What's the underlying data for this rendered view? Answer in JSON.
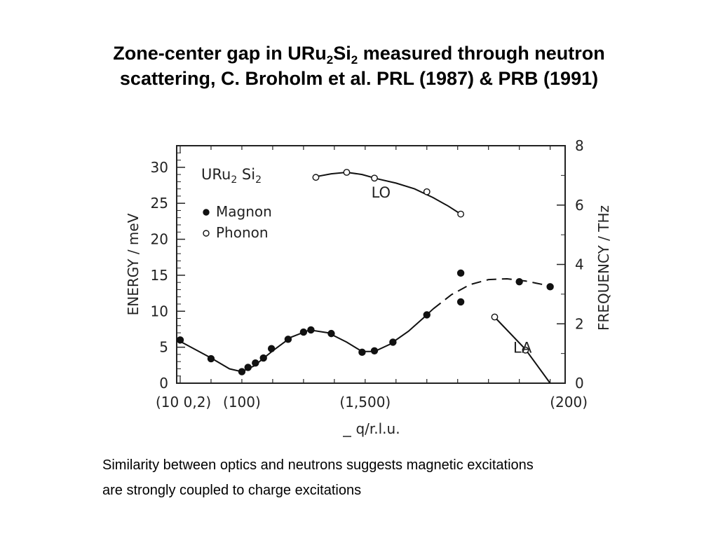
{
  "slide": {
    "title_line1_pre": "Zone-center gap in URu",
    "title_sub1": "2",
    "title_mid": "Si",
    "title_sub2": "2",
    "title_line1_post": " measured through neutron",
    "title_line2": "scattering, C. Broholm et al. PRL (1987) & PRB (1991)",
    "caption_line1": "Similarity between optics and neutrons suggests magnetic excitations",
    "caption_line2": "are strongly coupled to charge excitations"
  },
  "chart_data": {
    "type": "scatter",
    "ylabel": "ENERGY / meV",
    "y2label": "FREQUENCY / THz",
    "xlabel": "q/r.l.u.",
    "ylim": [
      0,
      33
    ],
    "y2lim": [
      0,
      8
    ],
    "xlim": [
      -0.5,
      5.8
    ],
    "yticks": [
      0,
      5,
      10,
      15,
      20,
      25,
      30
    ],
    "y2ticks": [
      0,
      2,
      4,
      6,
      8
    ],
    "x_tick_labels": [
      {
        "x": -0.5,
        "label": "(10 0,2)"
      },
      {
        "x": 0.5,
        "label": "(100)"
      },
      {
        "x": 2.5,
        "label": "(1,500)"
      },
      {
        "x": 5.5,
        "label": "(200)"
      }
    ],
    "inset_label": {
      "main": "URu",
      "sub1": "2",
      "mid": " Si",
      "sub2": "2"
    },
    "legend": [
      {
        "name": "Magnon",
        "marker": "filled"
      },
      {
        "name": "Phonon",
        "marker": "open"
      }
    ],
    "legend_position": "top-left",
    "curve_labels": [
      {
        "text": "LO",
        "x": 2.6,
        "y": 26.2
      },
      {
        "text": "LA",
        "x": 4.9,
        "y": 4.6
      }
    ],
    "series": [
      {
        "name": "Magnon",
        "marker": "filled",
        "points": [
          [
            -0.5,
            6.0
          ],
          [
            0.0,
            3.4
          ],
          [
            0.5,
            1.6
          ],
          [
            0.6,
            2.2
          ],
          [
            0.72,
            2.8
          ],
          [
            0.85,
            3.5
          ],
          [
            0.98,
            4.8
          ],
          [
            1.25,
            6.1
          ],
          [
            1.5,
            7.1
          ],
          [
            1.62,
            7.4
          ],
          [
            1.95,
            6.9
          ],
          [
            2.45,
            4.3
          ],
          [
            2.65,
            4.5
          ],
          [
            2.95,
            5.7
          ],
          [
            3.5,
            9.5
          ],
          [
            4.05,
            11.3
          ],
          [
            4.05,
            15.3
          ],
          [
            5.0,
            14.1
          ],
          [
            5.5,
            13.4
          ]
        ]
      },
      {
        "name": "Phonon LO",
        "marker": "open",
        "points": [
          [
            1.7,
            28.6
          ],
          [
            2.2,
            29.3
          ],
          [
            2.65,
            28.5
          ],
          [
            3.5,
            26.6
          ],
          [
            4.05,
            23.5
          ]
        ]
      },
      {
        "name": "Phonon LA",
        "marker": "open",
        "points": [
          [
            4.6,
            9.2
          ],
          [
            5.1,
            4.6
          ]
        ]
      }
    ],
    "fits": [
      {
        "style": "solid",
        "points": [
          [
            -0.5,
            5.8
          ],
          [
            0.0,
            3.5
          ],
          [
            0.3,
            2.0
          ],
          [
            0.5,
            1.6
          ],
          [
            0.7,
            2.4
          ],
          [
            1.0,
            4.5
          ],
          [
            1.3,
            6.4
          ],
          [
            1.6,
            7.4
          ],
          [
            1.9,
            7.0
          ],
          [
            2.2,
            5.7
          ],
          [
            2.45,
            4.4
          ],
          [
            2.65,
            4.4
          ],
          [
            2.9,
            5.4
          ],
          [
            3.2,
            7.2
          ],
          [
            3.45,
            9.1
          ],
          [
            3.6,
            10.3
          ]
        ]
      },
      {
        "style": "dashed",
        "points": [
          [
            3.6,
            10.3
          ],
          [
            3.9,
            12.3
          ],
          [
            4.2,
            13.7
          ],
          [
            4.5,
            14.4
          ],
          [
            4.8,
            14.5
          ],
          [
            5.1,
            14.2
          ],
          [
            5.5,
            13.5
          ]
        ]
      },
      {
        "style": "solid",
        "points": [
          [
            1.7,
            28.7
          ],
          [
            1.95,
            29.1
          ],
          [
            2.2,
            29.3
          ],
          [
            2.45,
            29.0
          ],
          [
            2.7,
            28.4
          ],
          [
            3.0,
            27.8
          ],
          [
            3.3,
            27.0
          ],
          [
            3.6,
            25.8
          ],
          [
            3.85,
            24.6
          ],
          [
            4.05,
            23.5
          ]
        ]
      },
      {
        "style": "solid",
        "points": [
          [
            4.62,
            9.0
          ],
          [
            5.1,
            4.7
          ],
          [
            5.5,
            0.0
          ]
        ]
      }
    ]
  }
}
